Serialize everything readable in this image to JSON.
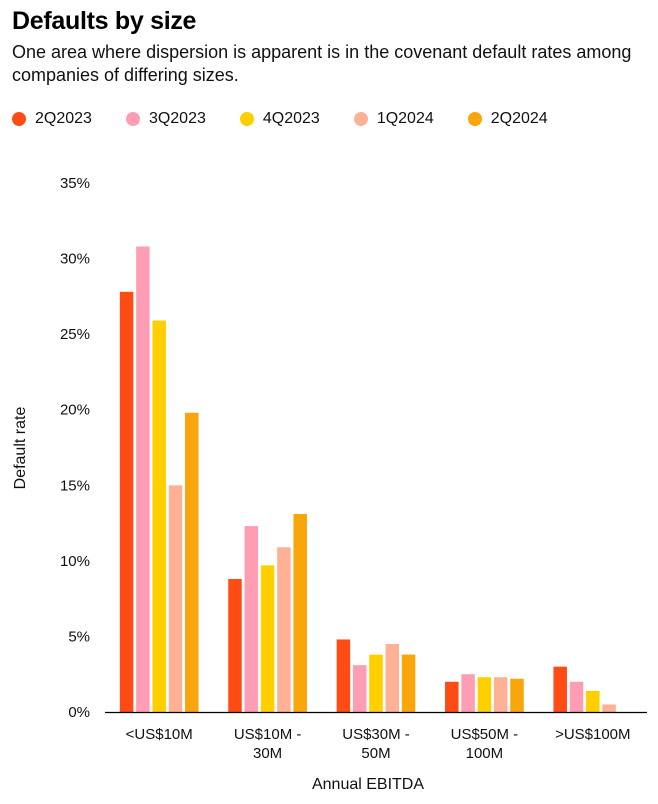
{
  "colors": {
    "2Q2023": "#ff4c15",
    "3Q2023": "#ff9db5",
    "4Q2023": "#ffcf00",
    "1Q2024": "#ffb196",
    "2Q2024": "#f9a50c"
  },
  "chart_data": {
    "type": "bar",
    "title": "Defaults by size",
    "subtitle": "One area where dispersion is apparent is in the covenant default rates among companies of differing sizes.",
    "xlabel": "Annual EBITDA",
    "ylabel": "Default rate",
    "ylim": [
      0,
      35
    ],
    "yticks": [
      "0%",
      "5%",
      "10%",
      "15%",
      "20%",
      "25%",
      "30%",
      "35%"
    ],
    "grid": false,
    "legend_position": "top-left",
    "categories": [
      [
        "<US$10M"
      ],
      [
        "US$10M -",
        "30M"
      ],
      [
        "US$30M -",
        "50M"
      ],
      [
        "US$50M -",
        "100M"
      ],
      [
        ">US$100M"
      ]
    ],
    "series": [
      {
        "name": "2Q2023",
        "color": "#ff4c15",
        "values": [
          27.8,
          8.8,
          4.8,
          2.0,
          3.0
        ]
      },
      {
        "name": "3Q2023",
        "color": "#ff9db5",
        "values": [
          30.8,
          12.3,
          3.1,
          2.5,
          2.0
        ]
      },
      {
        "name": "4Q2023",
        "color": "#ffcf00",
        "values": [
          25.9,
          9.7,
          3.8,
          2.3,
          1.4
        ]
      },
      {
        "name": "1Q2024",
        "color": "#ffb196",
        "values": [
          15.0,
          10.9,
          4.5,
          2.3,
          0.5
        ]
      },
      {
        "name": "2Q2024",
        "color": "#f9a50c",
        "values": [
          19.8,
          13.1,
          3.8,
          2.2,
          0.0
        ]
      }
    ]
  }
}
